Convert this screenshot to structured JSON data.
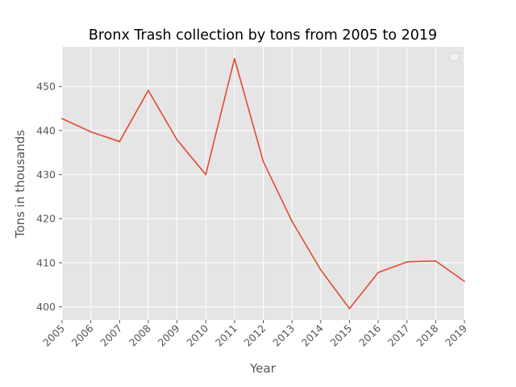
{
  "chart_data": {
    "type": "line",
    "title": "Bronx Trash collection by tons from 2005 to 2019",
    "xlabel": "Year",
    "ylabel": "Tons in thousands",
    "x": [
      "2005",
      "2006",
      "2007",
      "2008",
      "2009",
      "2010",
      "2011",
      "2012",
      "2013",
      "2014",
      "2015",
      "2016",
      "2017",
      "2018",
      "2019"
    ],
    "series": [
      {
        "values": [
          442.7,
          439.7,
          437.5,
          449.1,
          437.9,
          430.0,
          456.3,
          433.0,
          419.4,
          408.4,
          399.6,
          407.8,
          410.2,
          410.4,
          405.8
        ],
        "color": "#e24a33"
      }
    ],
    "xlim": [
      2005,
      2019
    ],
    "ylim": [
      397,
      459
    ],
    "yticks": [
      400,
      410,
      420,
      430,
      440,
      450
    ],
    "xtick_rotation": 45,
    "grid": true,
    "legend": "top-right, empty",
    "style": {
      "plot_background": "#e5e5e5",
      "grid_color": "#ffffff"
    }
  }
}
